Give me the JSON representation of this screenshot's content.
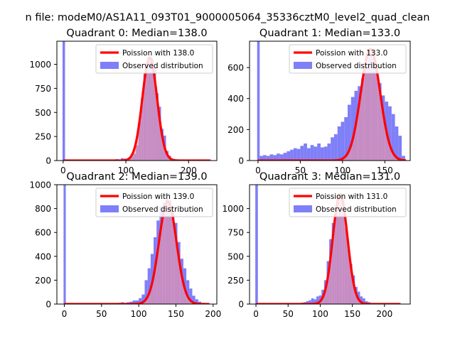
{
  "figure": {
    "suptitle": "n file: modeM0/AS1A11_093T01_9000005064_35336cztM0_level2_quad_clean"
  },
  "colors": {
    "hist": "#7f7ff8",
    "poisson": "#ff0000",
    "pale": "#ff9999",
    "axis": "#000000",
    "background": "#ffffff"
  },
  "chart_data": [
    {
      "type": "bar",
      "title": "Quadrant 0: Median=138.0",
      "xlim": [
        -10,
        245
      ],
      "ylim": [
        0,
        1240
      ],
      "xticks": [
        0,
        100,
        200
      ],
      "yticks": [
        0,
        250,
        500,
        750,
        1000
      ],
      "legend": {
        "position": "top-right",
        "entries": [
          "Poission with 138.0",
          "Observed distribution"
        ]
      },
      "hist": {
        "bins": [
          [
            -1,
            3,
            1240
          ],
          [
            80,
            84,
            10
          ],
          [
            84,
            88,
            15
          ],
          [
            88,
            92,
            10
          ],
          [
            92,
            96,
            25
          ],
          [
            96,
            100,
            20
          ],
          [
            100,
            104,
            10
          ],
          [
            104,
            108,
            20
          ],
          [
            108,
            112,
            40
          ],
          [
            112,
            116,
            70
          ],
          [
            116,
            120,
            160
          ],
          [
            120,
            124,
            400
          ],
          [
            124,
            128,
            650
          ],
          [
            128,
            132,
            900
          ],
          [
            132,
            136,
            1000
          ],
          [
            136,
            140,
            1080
          ],
          [
            140,
            144,
            1060
          ],
          [
            144,
            148,
            960
          ],
          [
            148,
            152,
            700
          ],
          [
            152,
            156,
            560
          ],
          [
            156,
            160,
            330
          ],
          [
            160,
            164,
            260
          ],
          [
            164,
            168,
            100
          ],
          [
            168,
            172,
            50
          ],
          [
            172,
            176,
            20
          ],
          [
            176,
            180,
            10
          ]
        ]
      },
      "poisson": {
        "mean": 138,
        "peak": 1070,
        "xmin": 0,
        "xmax": 235
      }
    },
    {
      "type": "bar",
      "title": "Quadrant 1: Median=133.0",
      "xlim": [
        -10,
        180
      ],
      "ylim": [
        0,
        770
      ],
      "xticks": [
        0,
        50,
        100,
        150
      ],
      "yticks": [
        0,
        200,
        400,
        600
      ],
      "legend": {
        "position": "top-right",
        "entries": [
          "Poission with 133.0",
          "Observed distribution"
        ]
      },
      "hist": {
        "bins": [
          [
            -1,
            2,
            770
          ],
          [
            2,
            6,
            30
          ],
          [
            6,
            10,
            35
          ],
          [
            10,
            14,
            30
          ],
          [
            14,
            18,
            40
          ],
          [
            18,
            22,
            35
          ],
          [
            22,
            26,
            45
          ],
          [
            26,
            30,
            40
          ],
          [
            30,
            34,
            50
          ],
          [
            34,
            38,
            60
          ],
          [
            38,
            42,
            70
          ],
          [
            42,
            46,
            80
          ],
          [
            46,
            50,
            75
          ],
          [
            50,
            54,
            95
          ],
          [
            54,
            58,
            110
          ],
          [
            58,
            62,
            80
          ],
          [
            62,
            66,
            100
          ],
          [
            66,
            70,
            90
          ],
          [
            70,
            74,
            110
          ],
          [
            74,
            78,
            85
          ],
          [
            78,
            82,
            90
          ],
          [
            82,
            86,
            110
          ],
          [
            86,
            90,
            150
          ],
          [
            90,
            94,
            170
          ],
          [
            94,
            98,
            220
          ],
          [
            98,
            102,
            250
          ],
          [
            102,
            106,
            280
          ],
          [
            106,
            110,
            360
          ],
          [
            110,
            114,
            410
          ],
          [
            114,
            118,
            450
          ],
          [
            118,
            122,
            480
          ],
          [
            122,
            126,
            530
          ],
          [
            126,
            130,
            600
          ],
          [
            130,
            134,
            700
          ],
          [
            134,
            138,
            690
          ],
          [
            138,
            142,
            600
          ],
          [
            142,
            146,
            500
          ],
          [
            146,
            150,
            420
          ],
          [
            150,
            154,
            380
          ],
          [
            154,
            158,
            350
          ],
          [
            158,
            162,
            300
          ],
          [
            162,
            166,
            220
          ],
          [
            166,
            170,
            160
          ],
          [
            170,
            174,
            30
          ]
        ]
      },
      "poisson": {
        "mean": 133,
        "peak": 720,
        "xmin": 0,
        "xmax": 175
      }
    },
    {
      "type": "bar",
      "title": "Quadrant 2: Median=139.0",
      "xlim": [
        -10,
        205
      ],
      "ylim": [
        0,
        1000
      ],
      "xticks": [
        0,
        50,
        100,
        150,
        200
      ],
      "yticks": [
        0,
        200,
        400,
        600,
        800,
        1000
      ],
      "legend": {
        "position": "top-right",
        "entries": [
          "Poission with 139.0",
          "Observed distribution"
        ]
      },
      "hist": {
        "bins": [
          [
            -1,
            2,
            1000
          ],
          [
            72,
            76,
            10
          ],
          [
            76,
            80,
            15
          ],
          [
            80,
            84,
            10
          ],
          [
            84,
            88,
            15
          ],
          [
            88,
            92,
            20
          ],
          [
            92,
            96,
            30
          ],
          [
            96,
            100,
            30
          ],
          [
            100,
            104,
            50
          ],
          [
            104,
            108,
            80
          ],
          [
            108,
            112,
            200
          ],
          [
            112,
            116,
            300
          ],
          [
            116,
            120,
            420
          ],
          [
            120,
            124,
            560
          ],
          [
            124,
            128,
            700
          ],
          [
            128,
            132,
            820
          ],
          [
            132,
            136,
            850
          ],
          [
            136,
            140,
            880
          ],
          [
            140,
            144,
            870
          ],
          [
            144,
            148,
            780
          ],
          [
            148,
            152,
            680
          ],
          [
            152,
            156,
            520
          ],
          [
            156,
            160,
            380
          ],
          [
            160,
            164,
            300
          ],
          [
            164,
            168,
            200
          ],
          [
            168,
            172,
            130
          ],
          [
            172,
            176,
            70
          ],
          [
            176,
            180,
            40
          ],
          [
            180,
            184,
            20
          ],
          [
            184,
            188,
            10
          ]
        ]
      },
      "poisson": {
        "mean": 139,
        "peak": 860,
        "xmin": 0,
        "xmax": 195
      }
    },
    {
      "type": "bar",
      "title": "Quadrant 3: Median=131.0",
      "xlim": [
        -10,
        240
      ],
      "ylim": [
        0,
        1250
      ],
      "xticks": [
        0,
        50,
        100,
        150,
        200
      ],
      "yticks": [
        0,
        250,
        500,
        750,
        1000
      ],
      "legend": {
        "position": "top-right",
        "entries": [
          "Poission with 131.0",
          "Observed distribution"
        ]
      },
      "hist": {
        "bins": [
          [
            -1,
            3,
            1250
          ],
          [
            70,
            74,
            15
          ],
          [
            74,
            78,
            20
          ],
          [
            78,
            82,
            30
          ],
          [
            82,
            86,
            40
          ],
          [
            86,
            90,
            60
          ],
          [
            90,
            94,
            50
          ],
          [
            94,
            98,
            80
          ],
          [
            98,
            102,
            90
          ],
          [
            102,
            106,
            150
          ],
          [
            106,
            110,
            250
          ],
          [
            110,
            114,
            450
          ],
          [
            114,
            118,
            680
          ],
          [
            118,
            122,
            850
          ],
          [
            122,
            126,
            960
          ],
          [
            126,
            130,
            1080
          ],
          [
            130,
            134,
            1100
          ],
          [
            134,
            138,
            950
          ],
          [
            138,
            142,
            800
          ],
          [
            142,
            146,
            600
          ],
          [
            146,
            150,
            420
          ],
          [
            150,
            154,
            300
          ],
          [
            154,
            158,
            180
          ],
          [
            158,
            162,
            130
          ],
          [
            162,
            166,
            80
          ],
          [
            166,
            170,
            60
          ],
          [
            170,
            174,
            30
          ],
          [
            174,
            178,
            20
          ],
          [
            178,
            182,
            10
          ]
        ]
      },
      "poisson": {
        "mean": 131,
        "peak": 1150,
        "xmin": 0,
        "xmax": 225
      }
    }
  ]
}
